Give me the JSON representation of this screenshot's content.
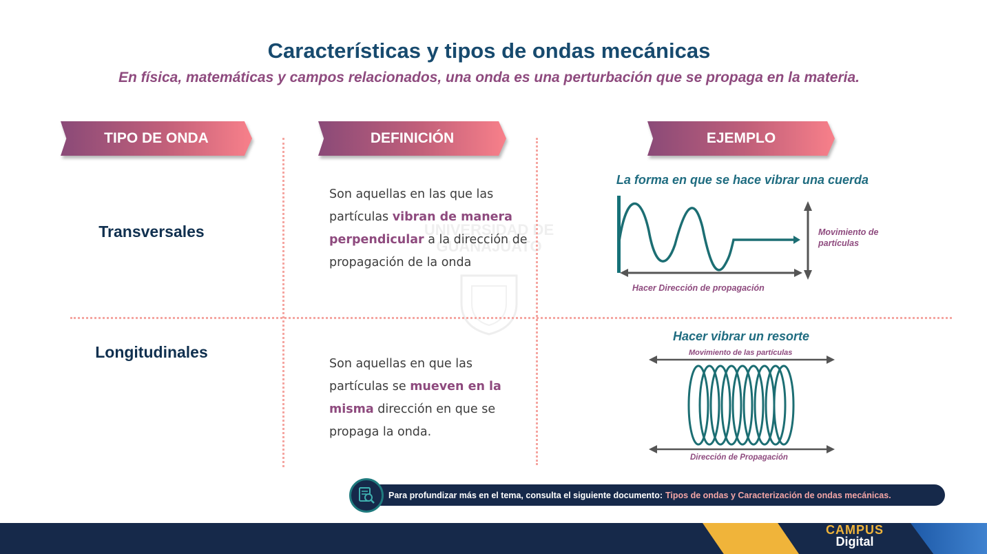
{
  "header": {
    "title": "Características y tipos de ondas mecánicas",
    "subtitle": "En física, matemáticas y campos relacionados, una onda es una perturbación que se propaga en la materia."
  },
  "columns": {
    "type": "TIPO DE ONDA",
    "definition": "DEFINICIÓN",
    "example": "EJEMPLO"
  },
  "rows": [
    {
      "label": "Transversales",
      "def_pre": "Son aquellas en las que las partículas ",
      "def_bold": "vibran de manera perpendicular",
      "def_post": " a la dirección de propagación de la onda",
      "example_title": "La forma en que se hace vibrar una cuerda",
      "label_side": "Movimiento de partículas",
      "label_bottom": "Hacer Dirección de propagación"
    },
    {
      "label": "Longitudinales",
      "def_pre": "Son aquellas en que las partículas se ",
      "def_bold": "mueven en la misma",
      "def_post": " dirección en que se propaga la onda.",
      "example_title": "Hacer vibrar un resorte",
      "label_top": "Movimiento de las partículas",
      "label_bottom": "Dirección de Propagación"
    }
  ],
  "watermark": {
    "line1": "UNIVERSIDAD DE",
    "line2": "GUANAJUATO"
  },
  "note": {
    "text": "Para profundizar más en el tema, consulta el siguiente documento:",
    "link": "Tipos de ondas y Caracterización de ondas mecánicas."
  },
  "logo": {
    "line1": "CAMPUS",
    "line2": "Digital"
  },
  "colors": {
    "title": "#174a6e",
    "accent": "#8e4a7e",
    "teal": "#1f6c80",
    "navy": "#16294a"
  }
}
